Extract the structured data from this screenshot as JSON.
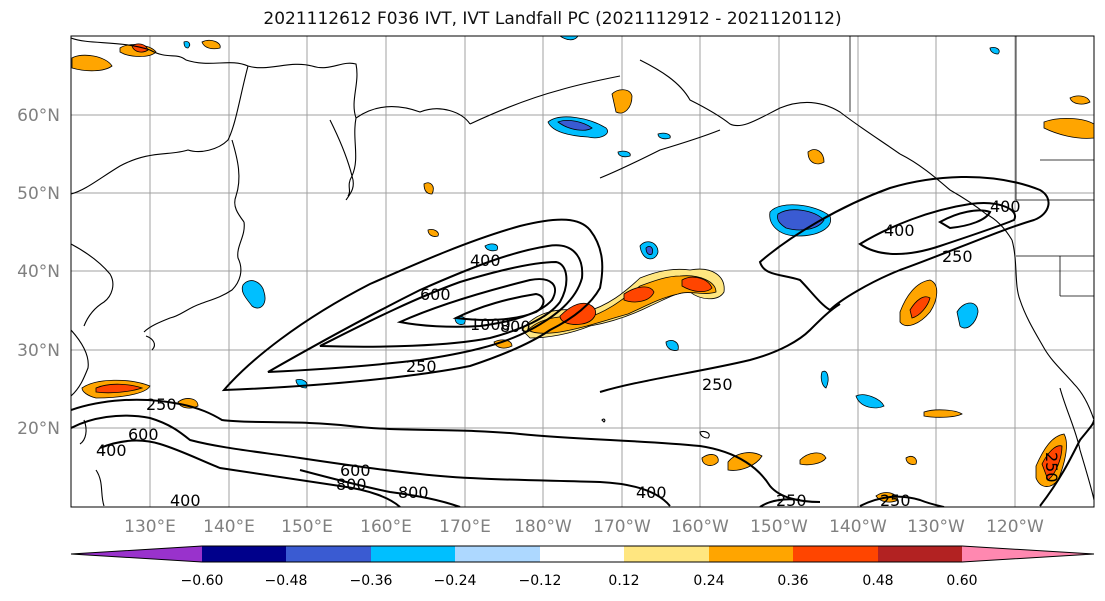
{
  "title": "2021112612 F036 IVT, IVT Landfall PC (2021112912 - 2021120112)",
  "lat_ticks": [
    "60°N",
    "50°N",
    "40°N",
    "30°N",
    "20°N"
  ],
  "lon_ticks": [
    "130°E",
    "140°E",
    "150°E",
    "160°E",
    "170°E",
    "180°W",
    "170°W",
    "160°W",
    "150°W",
    "140°W",
    "130°W",
    "120°W"
  ],
  "contour_labels": [
    "600",
    "400",
    "1000",
    "800",
    "250",
    "400",
    "250",
    "250",
    "250",
    "600",
    "400",
    "600",
    "800",
    "800",
    "400",
    "400",
    "250",
    "250",
    "250",
    "400"
  ],
  "colorbar": {
    "colors": [
      "#9932cc",
      "#00008b",
      "#3a5bd2",
      "#00bfff",
      "#add8ff",
      "#ffffff",
      "#ffe680",
      "#ffa500",
      "#ff4500",
      "#b22222",
      "#ff88b0"
    ],
    "tick_labels": [
      "−0.60",
      "−0.48",
      "−0.36",
      "−0.24",
      "−0.12",
      "0.12",
      "0.24",
      "0.36",
      "0.48",
      "0.60"
    ]
  },
  "colors": {
    "positive_fill": "#ffa500",
    "negative_fill": "#00bfff",
    "contour": "#000000",
    "grid": "#a0a0a0",
    "tick_label": "#808080"
  }
}
